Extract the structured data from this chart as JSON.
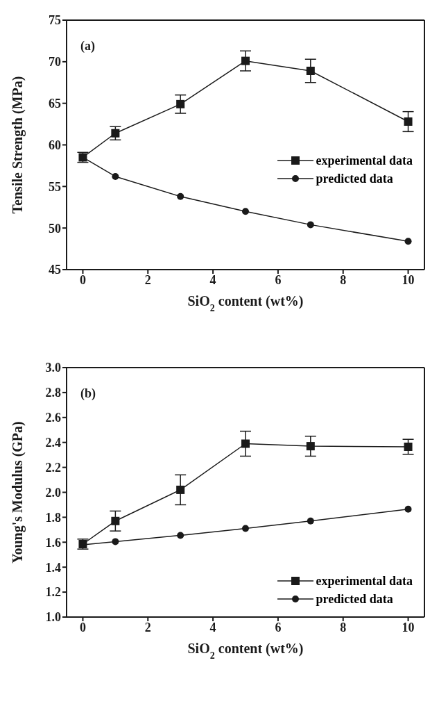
{
  "chart_data": [
    {
      "type": "line",
      "xlabel": "SiO$_{2}$ content (wt%)",
      "ylabel": "Tensile Strength (MPa)",
      "annotations": [
        "(a)"
      ],
      "x": [
        0,
        1,
        3,
        5,
        7,
        10
      ],
      "xlim": [
        -0.5,
        10.5
      ],
      "xticks": [
        0,
        2,
        4,
        6,
        8,
        10
      ],
      "ylim": [
        45,
        75
      ],
      "yticks": [
        45,
        50,
        55,
        60,
        65,
        70,
        75
      ],
      "grid": false,
      "legend": "right",
      "line_style": "solid",
      "series": [
        {
          "name": "experimental data",
          "color": "#1a1a1a",
          "marker": "square",
          "values": [
            58.5,
            61.4,
            64.9,
            70.1,
            68.9,
            62.8
          ],
          "errors": [
            0.6,
            0.8,
            1.1,
            1.2,
            1.4,
            1.2
          ]
        },
        {
          "name": "predicted data",
          "color": "#1a1a1a",
          "marker": "circle",
          "values": [
            58.5,
            56.2,
            53.8,
            52.0,
            50.4,
            48.4
          ]
        }
      ]
    },
    {
      "type": "line",
      "xlabel": "SiO$_{2}$ content (wt%)",
      "ylabel": "Young's Modulus (GPa)",
      "annotations": [
        "(b)"
      ],
      "x": [
        0,
        1,
        3,
        5,
        7,
        10
      ],
      "xlim": [
        -0.5,
        10.5
      ],
      "xticks": [
        0,
        2,
        4,
        6,
        8,
        10
      ],
      "ylim": [
        1.0,
        3.0
      ],
      "yticks": [
        {
          "value": 1.0,
          "label": "1.0"
        },
        {
          "value": 1.2,
          "label": "1.2"
        },
        {
          "value": 1.4,
          "label": "1.4"
        },
        {
          "value": 1.6,
          "label": "1.6"
        },
        {
          "value": 1.8,
          "label": "1.8"
        },
        {
          "value": 2.0,
          "label": "2.0"
        },
        {
          "value": 2.2,
          "label": "2.2"
        },
        {
          "value": 2.4,
          "label": "2.4"
        },
        {
          "value": 2.6,
          "label": "2.6"
        },
        {
          "value": 2.8,
          "label": "2.8"
        },
        {
          "value": 3.0,
          "label": "3.0"
        }
      ],
      "grid": false,
      "legend": "bottom right",
      "line_style": "solid",
      "series": [
        {
          "name": "experimental data",
          "color": "#1a1a1a",
          "marker": "square",
          "values": [
            1.585,
            1.77,
            2.02,
            2.39,
            2.37,
            2.365
          ],
          "errors": [
            0.04,
            0.08,
            0.12,
            0.1,
            0.08,
            0.06
          ]
        },
        {
          "name": "predicted data",
          "color": "#1a1a1a",
          "marker": "circle",
          "values": [
            1.58,
            1.605,
            1.655,
            1.71,
            1.77,
            1.865
          ]
        }
      ]
    }
  ]
}
